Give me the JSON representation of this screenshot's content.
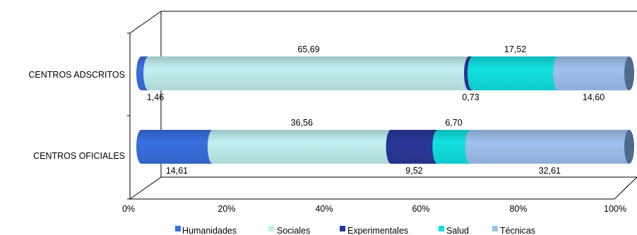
{
  "chart_data": {
    "type": "bar",
    "orientation": "horizontal",
    "stacked": "100%",
    "style": "3d-cylinder",
    "title": "",
    "xlabel": "",
    "ylabel": "",
    "xlim": [
      0,
      100
    ],
    "x_ticks": [
      "0%",
      "20%",
      "40%",
      "60%",
      "80%",
      "100%"
    ],
    "grid": false,
    "legend_position": "bottom",
    "categories": [
      "CENTROS ADSCRITOS",
      "CENTROS OFICIALES"
    ],
    "series": [
      {
        "name": "Humanidades",
        "color": "#3a6fe0",
        "values": [
          1.46,
          14.61
        ],
        "labels": [
          "1,46",
          "14,61"
        ]
      },
      {
        "name": "Sociales",
        "color": "#c2f0f0",
        "values": [
          65.69,
          36.56
        ],
        "labels": [
          "65,69",
          "36,56"
        ]
      },
      {
        "name": "Experimentales",
        "color": "#2b3799",
        "values": [
          0.73,
          9.52
        ],
        "labels": [
          "0,73",
          "9,52"
        ]
      },
      {
        "name": "Salud",
        "color": "#12e0e0",
        "values": [
          17.52,
          6.7
        ],
        "labels": [
          "17,52",
          "6,70"
        ]
      },
      {
        "name": "Técnicas",
        "color": "#9ec2ee",
        "values": [
          14.6,
          32.61
        ],
        "labels": [
          "14,60",
          "32,61"
        ]
      }
    ]
  }
}
